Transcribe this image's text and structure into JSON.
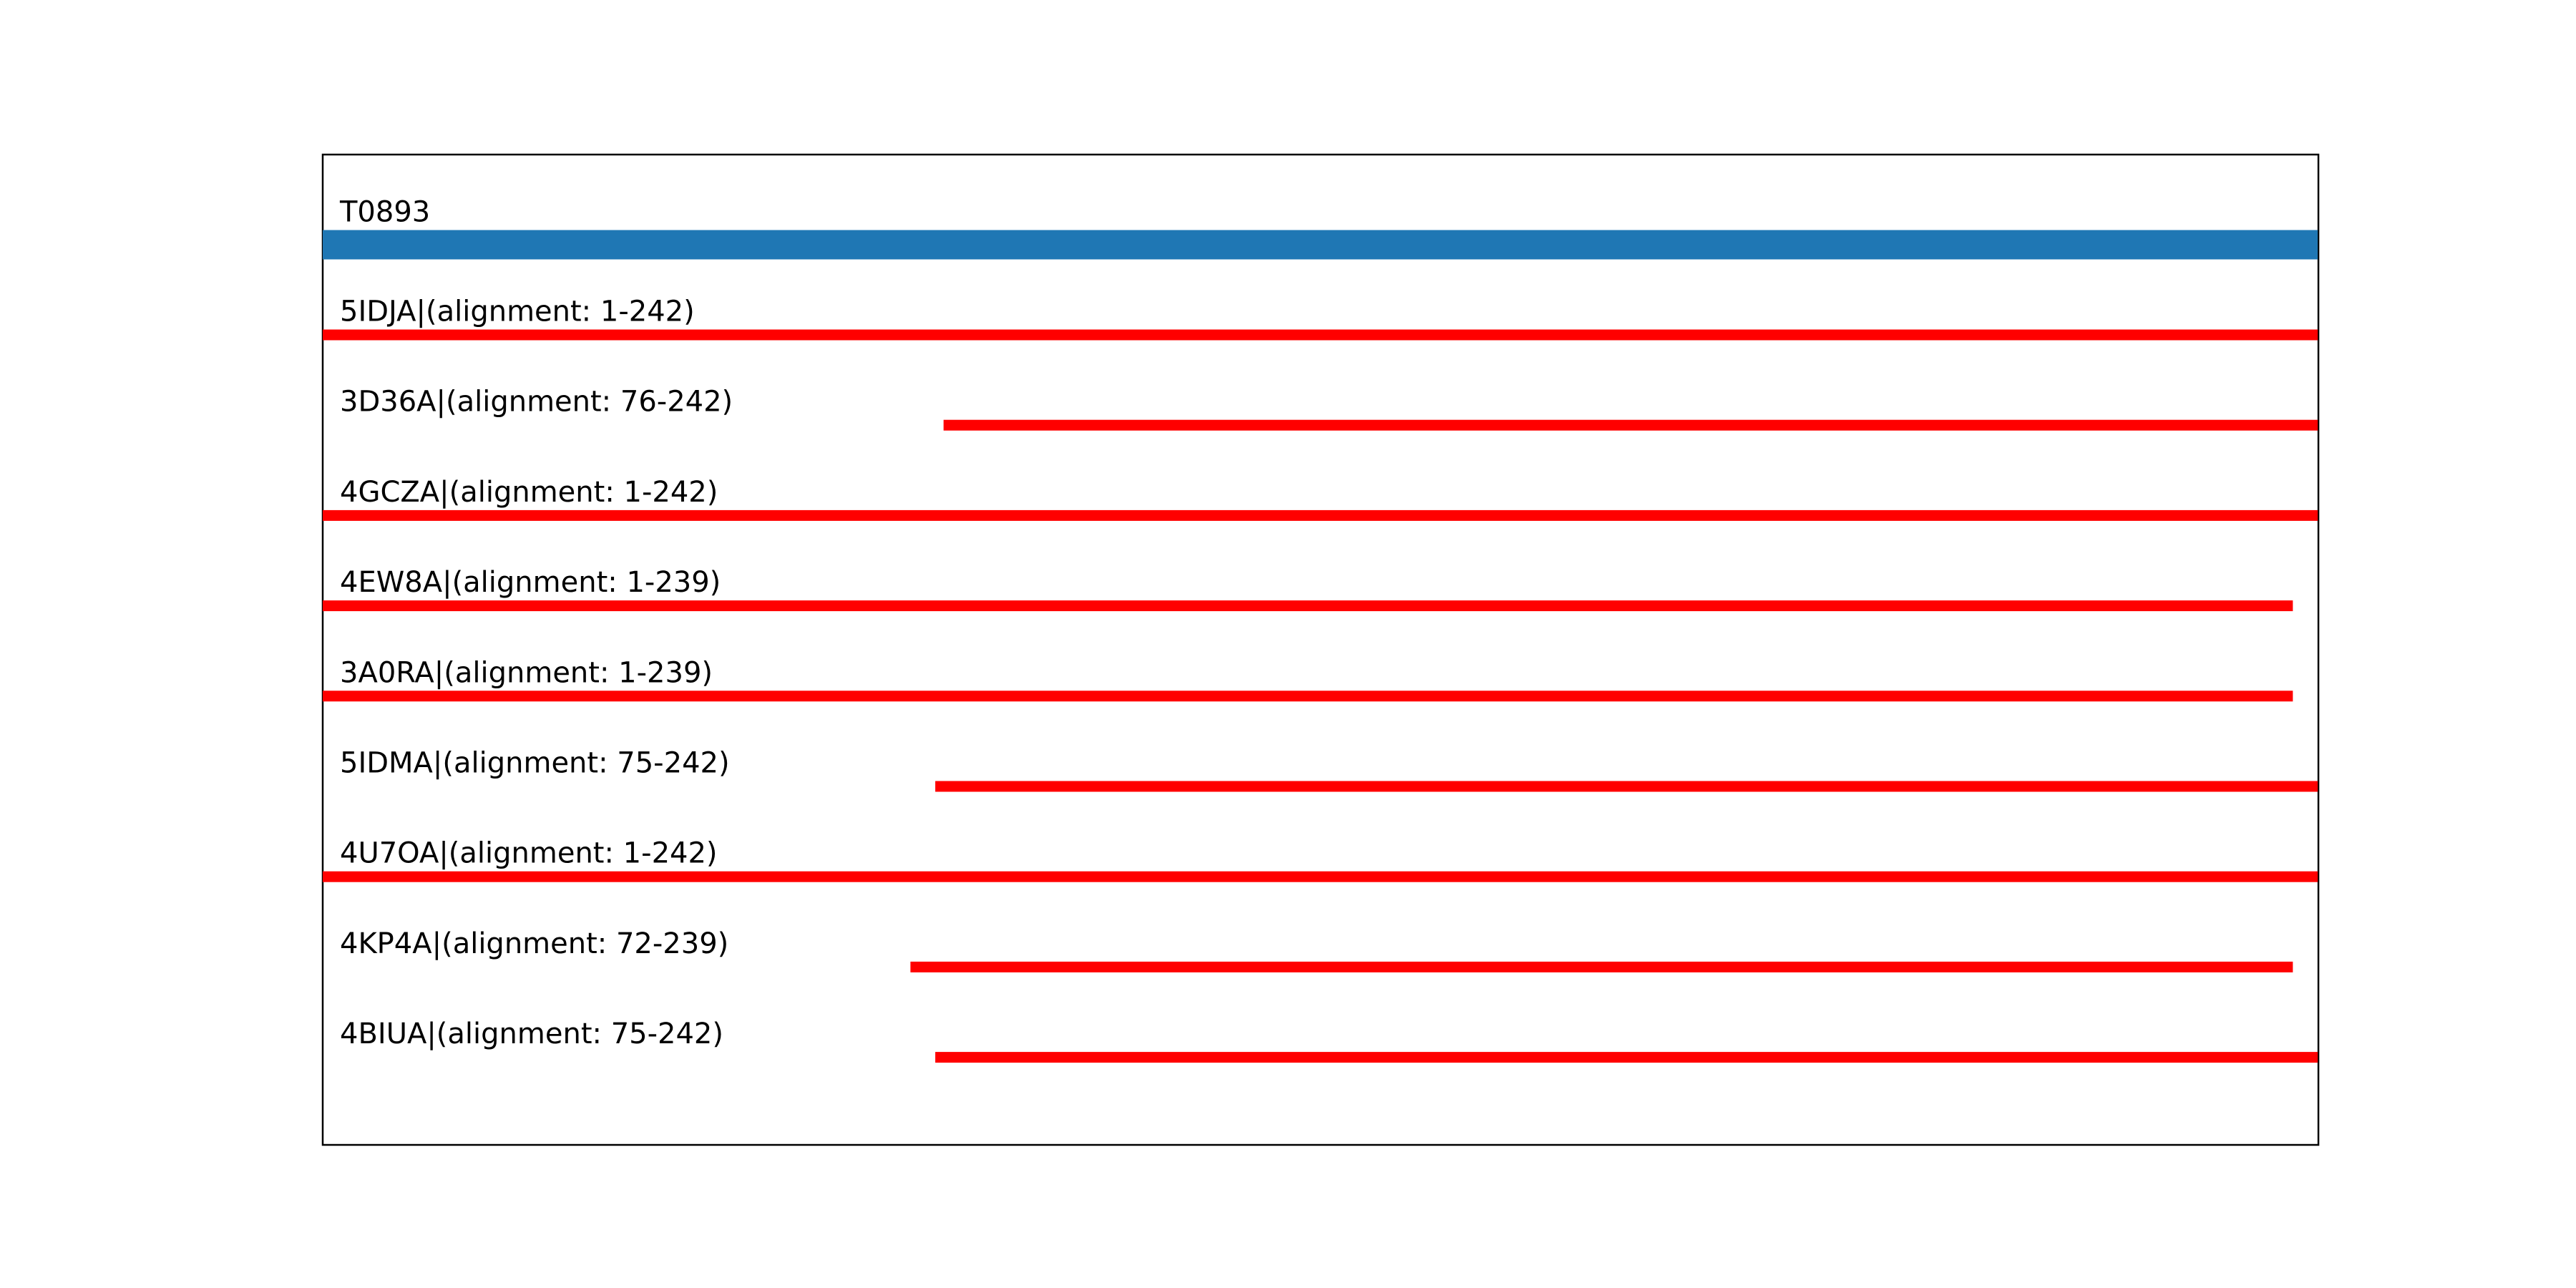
{
  "chart_data": {
    "type": "alignment",
    "xlim": [
      1,
      242
    ],
    "query": {
      "label": "T0893",
      "start": 1,
      "end": 242,
      "color": "#1f77b4"
    },
    "color": "#ff0000",
    "templates": [
      {
        "label": "5IDJA|(alignment: 1-242)",
        "start": 1,
        "end": 242
      },
      {
        "label": "3D36A|(alignment: 76-242)",
        "start": 76,
        "end": 242
      },
      {
        "label": "4GCZA|(alignment: 1-242)",
        "start": 1,
        "end": 242
      },
      {
        "label": "4EW8A|(alignment: 1-239)",
        "start": 1,
        "end": 239
      },
      {
        "label": "3A0RA|(alignment: 1-239)",
        "start": 1,
        "end": 239
      },
      {
        "label": "5IDMA|(alignment: 75-242)",
        "start": 75,
        "end": 242
      },
      {
        "label": "4U7OA|(alignment: 1-242)",
        "start": 1,
        "end": 242
      },
      {
        "label": "4KP4A|(alignment: 72-239)",
        "start": 72,
        "end": 239
      },
      {
        "label": "4BIUA|(alignment: 75-242)",
        "start": 75,
        "end": 242
      }
    ]
  }
}
